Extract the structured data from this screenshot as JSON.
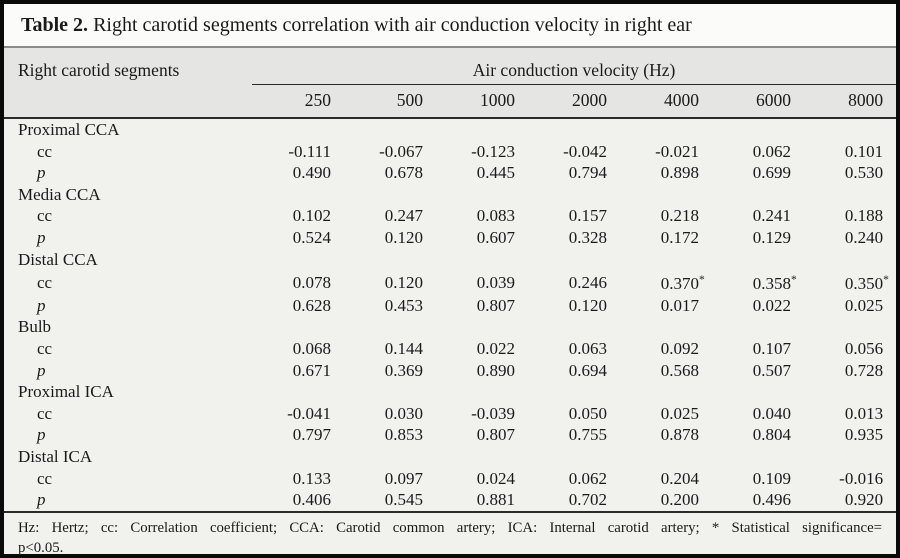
{
  "title": {
    "label": "Table 2.",
    "text": "Right carotid segments correlation with air conduction velocity in right ear"
  },
  "table": {
    "stub_header": "Right carotid segments",
    "spanner": "Air conduction velocity (Hz)",
    "frequencies": [
      "250",
      "500",
      "1000",
      "2000",
      "4000",
      "6000",
      "8000"
    ],
    "groups": [
      {
        "segment": "Proximal CCA",
        "rows": [
          {
            "label": "cc",
            "italic": false,
            "values": [
              "-0.111",
              "-0.067",
              "-0.123",
              "-0.042",
              "-0.021",
              "0.062",
              "0.101"
            ]
          },
          {
            "label": "p",
            "italic": true,
            "values": [
              "0.490",
              "0.678",
              "0.445",
              "0.794",
              "0.898",
              "0.699",
              "0.530"
            ]
          }
        ]
      },
      {
        "segment": "Media CCA",
        "rows": [
          {
            "label": "cc",
            "italic": false,
            "values": [
              "0.102",
              "0.247",
              "0.083",
              "0.157",
              "0.218",
              "0.241",
              "0.188"
            ]
          },
          {
            "label": "p",
            "italic": true,
            "values": [
              "0.524",
              "0.120",
              "0.607",
              "0.328",
              "0.172",
              "0.129",
              "0.240"
            ]
          }
        ]
      },
      {
        "segment": "Distal CCA",
        "rows": [
          {
            "label": "cc",
            "italic": false,
            "values": [
              "0.078",
              "0.120",
              "0.039",
              "0.246",
              "0.370*",
              "0.358*",
              "0.350*"
            ]
          },
          {
            "label": "p",
            "italic": true,
            "values": [
              "0.628",
              "0.453",
              "0.807",
              "0.120",
              "0.017",
              "0.022",
              "0.025"
            ]
          }
        ]
      },
      {
        "segment": "Bulb",
        "rows": [
          {
            "label": "cc",
            "italic": false,
            "values": [
              "0.068",
              "0.144",
              "0.022",
              "0.063",
              "0.092",
              "0.107",
              "0.056"
            ]
          },
          {
            "label": "p",
            "italic": true,
            "values": [
              "0.671",
              "0.369",
              "0.890",
              "0.694",
              "0.568",
              "0.507",
              "0.728"
            ]
          }
        ]
      },
      {
        "segment": "Proximal ICA",
        "rows": [
          {
            "label": "cc",
            "italic": false,
            "values": [
              "-0.041",
              "0.030",
              "-0.039",
              "0.050",
              "0.025",
              "0.040",
              "0.013"
            ]
          },
          {
            "label": "p",
            "italic": true,
            "values": [
              "0.797",
              "0.853",
              "0.807",
              "0.755",
              "0.878",
              "0.804",
              "0.935"
            ]
          }
        ]
      },
      {
        "segment": "Distal ICA",
        "rows": [
          {
            "label": "cc",
            "italic": false,
            "values": [
              "0.133",
              "0.097",
              "0.024",
              "0.062",
              "0.204",
              "0.109",
              "-0.016"
            ]
          },
          {
            "label": "p",
            "italic": true,
            "values": [
              "0.406",
              "0.545",
              "0.881",
              "0.702",
              "0.200",
              "0.496",
              "0.920"
            ]
          }
        ]
      }
    ]
  },
  "footnote": {
    "line1": "Hz: Hertz; cc: Correlation coefficient; CCA: Carotid common artery; ICA: Internal carotid artery; * Statistical significance=",
    "line2": "p<0.05."
  },
  "colors": {
    "frame_border": "#0a0a0a",
    "title_bg": "#fbfbfa",
    "header_band_bg": "#e5e6e3",
    "body_bg": "#f1f1ee",
    "rule_dark": "#2b2b2b",
    "rule_light": "#8a8a8a",
    "text": "#1a1a1a"
  }
}
